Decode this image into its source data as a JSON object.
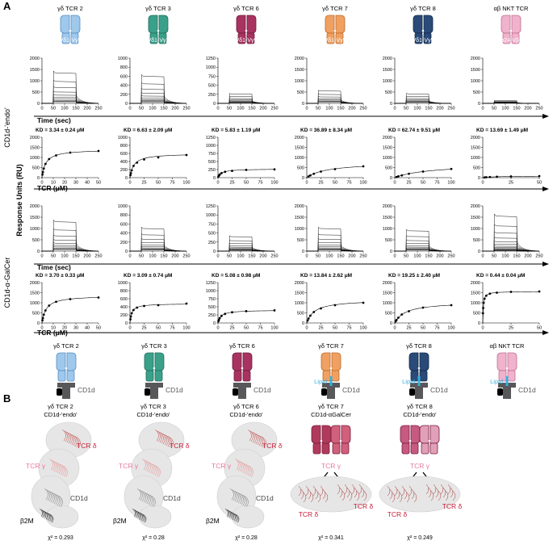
{
  "panel_a_label": "A",
  "panel_b_label": "B",
  "tcrs": [
    {
      "name": "γδ TCR 2",
      "chain": "Vδ1-Vγ5",
      "color": "#9ec8ec",
      "stroke": "#5a8ec0"
    },
    {
      "name": "γδ TCR 3",
      "chain": "Vδ1-Vγ2",
      "color": "#3aa08a",
      "stroke": "#1f6e5e"
    },
    {
      "name": "γδ TCR 6",
      "chain": "Vδ1-Vγ9",
      "color": "#a83360",
      "stroke": "#6e1c3c"
    },
    {
      "name": "γδ TCR 7",
      "chain": "Vδ1-Vγ5",
      "color": "#f0a060",
      "stroke": "#c06a2a"
    },
    {
      "name": "γδ TCR 8",
      "chain": "Vδ1-Vγ5",
      "color": "#2a4a78",
      "stroke": "#142a4a"
    },
    {
      "name": "αβ NKT TCR",
      "chain": "Vα24-Vβ11",
      "color": "#f0b2cc",
      "stroke": "#c07090"
    }
  ],
  "row_labels": {
    "endo": "CD1d-'endo'",
    "galcer": "CD1d-α-GalCer",
    "y_axis": "Response Units (RU)"
  },
  "axis_labels": {
    "time": "Time (sec)",
    "tcr": "TCR (μM)"
  },
  "sensor_xticks": [
    "0",
    "50",
    "100",
    "150",
    "200",
    "250"
  ],
  "sensor_rows": [
    {
      "row": "endo",
      "panels": [
        {
          "yticks": [
            "0",
            "500",
            "1000",
            "1500",
            "2000"
          ],
          "ymax": 2000,
          "top": 1350,
          "n": 10
        },
        {
          "yticks": [
            "0",
            "200",
            "400",
            "600",
            "800",
            "1000"
          ],
          "ymax": 1000,
          "top": 600,
          "n": 10
        },
        {
          "yticks": [
            "0",
            "250",
            "500",
            "750",
            "1000",
            "1250"
          ],
          "ymax": 1250,
          "top": 260,
          "n": 10
        },
        {
          "yticks": [
            "0",
            "500",
            "1000",
            "1500",
            "2000"
          ],
          "ymax": 2000,
          "top": 550,
          "n": 8
        },
        {
          "yticks": [
            "0",
            "500",
            "1000",
            "1500",
            "2000"
          ],
          "ymax": 2000,
          "top": 420,
          "n": 8
        },
        {
          "yticks": [
            "0",
            "500",
            "1000",
            "1500",
            "2000"
          ],
          "ymax": 2000,
          "top": 120,
          "n": 8
        }
      ]
    },
    {
      "row": "galcer",
      "panels": [
        {
          "yticks": [
            "0",
            "500",
            "1000",
            "1500",
            "2000"
          ],
          "ymax": 2000,
          "top": 1300,
          "n": 10
        },
        {
          "yticks": [
            "0",
            "200",
            "400",
            "600",
            "800",
            "1000"
          ],
          "ymax": 1000,
          "top": 500,
          "n": 10
        },
        {
          "yticks": [
            "0",
            "250",
            "500",
            "750",
            "1000",
            "1250"
          ],
          "ymax": 1250,
          "top": 400,
          "n": 10
        },
        {
          "yticks": [
            "0",
            "500",
            "1000",
            "1500",
            "2000"
          ],
          "ymax": 2000,
          "top": 1000,
          "n": 10
        },
        {
          "yticks": [
            "0",
            "500",
            "1000",
            "1500",
            "2000"
          ],
          "ymax": 2000,
          "top": 900,
          "n": 10
        },
        {
          "yticks": [
            "0",
            "500",
            "1000",
            "1500",
            "2000"
          ],
          "ymax": 2000,
          "top": 1550,
          "n": 14
        }
      ]
    }
  ],
  "chart_data": [
    {
      "type": "scatter",
      "row": "CD1d-'endo'",
      "tcr": "γδ TCR 2",
      "kd_text": "KD = 3.34 ± 0.24 μM",
      "kd": 3.34,
      "rmax": 1400,
      "xlim": [
        0,
        50
      ],
      "xticks": [
        "0",
        "10",
        "20",
        "30",
        "40",
        "50"
      ],
      "ylim": [
        0,
        2000
      ],
      "yticks": [
        "0",
        "500",
        "1000",
        "1500",
        "2000"
      ],
      "x": [
        0.4,
        0.8,
        1.6,
        3.1,
        6.3,
        12.5,
        25,
        50
      ],
      "y": [
        150,
        270,
        450,
        680,
        920,
        1100,
        1240,
        1320
      ]
    },
    {
      "type": "scatter",
      "row": "CD1d-'endo'",
      "tcr": "γδ TCR 3",
      "kd_text": "KD = 6.63 ± 2.09 μM",
      "kd": 6.63,
      "rmax": 600,
      "xlim": [
        0,
        100
      ],
      "xticks": [
        "0",
        "25",
        "50",
        "75",
        "100"
      ],
      "ylim": [
        0,
        1000
      ],
      "yticks": [
        "0",
        "200",
        "400",
        "600",
        "800",
        "1000"
      ],
      "x": [
        0.8,
        1.6,
        3.1,
        6.3,
        12.5,
        25,
        50,
        100
      ],
      "y": [
        60,
        110,
        180,
        290,
        370,
        450,
        500,
        560
      ]
    },
    {
      "type": "scatter",
      "row": "CD1d-'endo'",
      "tcr": "γδ TCR 6",
      "kd_text": "KD = 5.83 ± 1.19 μM",
      "kd": 5.83,
      "rmax": 270,
      "xlim": [
        0,
        100
      ],
      "xticks": [
        "0",
        "25",
        "50",
        "75",
        "100"
      ],
      "ylim": [
        0,
        1250
      ],
      "yticks": [
        "0",
        "250",
        "500",
        "750",
        "1000",
        "1250"
      ],
      "x": [
        0.8,
        1.6,
        3.1,
        6.3,
        12.5,
        25,
        50,
        100
      ],
      "y": [
        35,
        60,
        95,
        140,
        180,
        210,
        240,
        255
      ]
    },
    {
      "type": "scatter",
      "row": "CD1d-'endo'",
      "tcr": "γδ TCR 7",
      "kd_text": "KD = 36.89 ± 8.34 μM",
      "kd": 36.89,
      "rmax": 760,
      "xlim": [
        0,
        100
      ],
      "xticks": [
        "0",
        "25",
        "50",
        "75",
        "100"
      ],
      "ylim": [
        0,
        2000
      ],
      "yticks": [
        "0",
        "500",
        "1000",
        "1500",
        "2000"
      ],
      "x": [
        3.1,
        6.3,
        12.5,
        25,
        50,
        100
      ],
      "y": [
        60,
        110,
        190,
        300,
        420,
        560
      ]
    },
    {
      "type": "scatter",
      "row": "CD1d-'endo'",
      "tcr": "γδ TCR 8",
      "kd_text": "KD = 62.74 ± 9.51 μM",
      "kd": 62.74,
      "rmax": 680,
      "xlim": [
        0,
        100
      ],
      "xticks": [
        "0",
        "25",
        "50",
        "75",
        "100"
      ],
      "ylim": [
        0,
        2000
      ],
      "yticks": [
        "0",
        "500",
        "1000",
        "1500",
        "2000"
      ],
      "x": [
        3.1,
        6.3,
        12.5,
        25,
        50,
        100
      ],
      "y": [
        30,
        65,
        110,
        190,
        300,
        430
      ]
    },
    {
      "type": "scatter",
      "row": "CD1d-'endo'",
      "tcr": "αβ NKT TCR",
      "kd_text": "KD = 13.69 ± 1.49 μM",
      "kd": 13.69,
      "rmax": 90,
      "xlim": [
        0,
        50
      ],
      "xticks": [
        "0",
        "25",
        "50"
      ],
      "ylim": [
        0,
        2000
      ],
      "yticks": [
        "0",
        "500",
        "1000",
        "1500",
        "2000"
      ],
      "x": [
        1.6,
        3.1,
        6.3,
        12.5,
        25,
        50
      ],
      "y": [
        10,
        20,
        30,
        45,
        60,
        75
      ]
    },
    {
      "type": "scatter",
      "row": "CD1d-α-GalCer",
      "tcr": "γδ TCR 2",
      "kd_text": "KD = 3.70 ± 0.33 μM",
      "kd": 3.7,
      "rmax": 1360,
      "xlim": [
        0,
        50
      ],
      "xticks": [
        "0",
        "10",
        "20",
        "30",
        "40",
        "50"
      ],
      "ylim": [
        0,
        2000
      ],
      "yticks": [
        "0",
        "500",
        "1000",
        "1500",
        "2000"
      ],
      "x": [
        0.4,
        0.8,
        1.6,
        3.1,
        6.3,
        12.5,
        25,
        50
      ],
      "y": [
        130,
        240,
        410,
        620,
        860,
        1050,
        1180,
        1260
      ]
    },
    {
      "type": "scatter",
      "row": "CD1d-α-GalCer",
      "tcr": "γδ TCR 3",
      "kd_text": "KD = 3.09 ± 0.74 μM",
      "kd": 3.09,
      "rmax": 480,
      "xlim": [
        0,
        100
      ],
      "xticks": [
        "0",
        "25",
        "50",
        "75",
        "100"
      ],
      "ylim": [
        0,
        1000
      ],
      "yticks": [
        "0",
        "200",
        "400",
        "600",
        "800",
        "1000"
      ],
      "x": [
        0.8,
        1.6,
        3.1,
        6.3,
        12.5,
        25,
        50,
        100
      ],
      "y": [
        90,
        160,
        240,
        320,
        380,
        420,
        440,
        480
      ]
    },
    {
      "type": "scatter",
      "row": "CD1d-α-GalCer",
      "tcr": "γδ TCR 6",
      "kd_text": "KD = 5.08 ± 0.98 μM",
      "kd": 5.08,
      "rmax": 400,
      "xlim": [
        0,
        100
      ],
      "xticks": [
        "0",
        "25",
        "50",
        "75",
        "100"
      ],
      "ylim": [
        0,
        1250
      ],
      "yticks": [
        "0",
        "250",
        "500",
        "750",
        "1000",
        "1250"
      ],
      "x": [
        0.8,
        1.6,
        3.1,
        6.3,
        12.5,
        25,
        50,
        100
      ],
      "y": [
        55,
        95,
        150,
        220,
        280,
        330,
        365,
        390
      ]
    },
    {
      "type": "scatter",
      "row": "CD1d-α-GalCer",
      "tcr": "γδ TCR 7",
      "kd_text": "KD = 13.84 ± 2.62 μM",
      "kd": 13.84,
      "rmax": 1150,
      "xlim": [
        0,
        100
      ],
      "xticks": [
        "0",
        "25",
        "50",
        "75",
        "100"
      ],
      "ylim": [
        0,
        2000
      ],
      "yticks": [
        "0",
        "500",
        "1000",
        "1500",
        "2000"
      ],
      "x": [
        1.6,
        3.1,
        6.3,
        12.5,
        25,
        50,
        100
      ],
      "y": [
        120,
        220,
        360,
        540,
        720,
        880,
        1000
      ]
    },
    {
      "type": "scatter",
      "row": "CD1d-α-GalCer",
      "tcr": "γδ TCR 8",
      "kd_text": "KD = 19.25 ± 2.40 μM",
      "kd": 19.25,
      "rmax": 1050,
      "xlim": [
        0,
        100
      ],
      "xticks": [
        "0",
        "25",
        "50",
        "75",
        "100"
      ],
      "ylim": [
        0,
        2000
      ],
      "yticks": [
        "0",
        "500",
        "1000",
        "1500",
        "2000"
      ],
      "x": [
        1.6,
        3.1,
        6.3,
        12.5,
        25,
        50,
        100
      ],
      "y": [
        80,
        150,
        260,
        420,
        580,
        760,
        880
      ]
    },
    {
      "type": "scatter",
      "row": "CD1d-α-GalCer",
      "tcr": "αβ NKT TCR",
      "kd_text": "KD = 0.44 ± 0.04 μM",
      "kd": 0.44,
      "rmax": 1560,
      "xlim": [
        0,
        50
      ],
      "xticks": [
        "0",
        "25",
        "50"
      ],
      "ylim": [
        0,
        2000
      ],
      "yticks": [
        "0",
        "500",
        "1000",
        "1500",
        "2000"
      ],
      "x": [
        0.2,
        0.4,
        0.8,
        1.6,
        3.1,
        6.3,
        12.5,
        25,
        50
      ],
      "y": [
        480,
        740,
        1000,
        1200,
        1350,
        1450,
        1500,
        1540,
        1560
      ]
    }
  ],
  "bottom_icons": [
    {
      "name": "γδ TCR 2",
      "lipid": false
    },
    {
      "name": "γδ TCR 3",
      "lipid": false
    },
    {
      "name": "γδ TCR 6",
      "lipid": false
    },
    {
      "name": "γδ TCR 7",
      "lipid": true
    },
    {
      "name": "γδ TCR 8",
      "lipid": true
    },
    {
      "name": "αβ NKT TCR",
      "lipid": true
    }
  ],
  "cd1d_label": "CD1d",
  "lipid_label": "Lipid",
  "panel_b": [
    {
      "title": "γδ TCR 2",
      "subtitle": "CD1d-'endo'",
      "chi": "χ² = 0.293"
    },
    {
      "title": "γδ TCR 3",
      "subtitle": "CD1d-'endo'",
      "chi": "χ² = 0.28"
    },
    {
      "title": "γδ TCR 6",
      "subtitle": "CD1d-'endo'",
      "chi": "χ² = 0.28"
    },
    {
      "title": "γδ TCR 7",
      "subtitle": "CD1d-αGalCer",
      "chi": "χ² = 0.341"
    },
    {
      "title": "γδ TCR 8",
      "subtitle": "CD1d-'endo'",
      "chi": "χ² = 0.249"
    }
  ],
  "model_labels": {
    "tcr_delta": "TCR δ",
    "tcr_gamma": "TCR γ",
    "cd1d": "CD1d",
    "b2m": "β2M"
  }
}
